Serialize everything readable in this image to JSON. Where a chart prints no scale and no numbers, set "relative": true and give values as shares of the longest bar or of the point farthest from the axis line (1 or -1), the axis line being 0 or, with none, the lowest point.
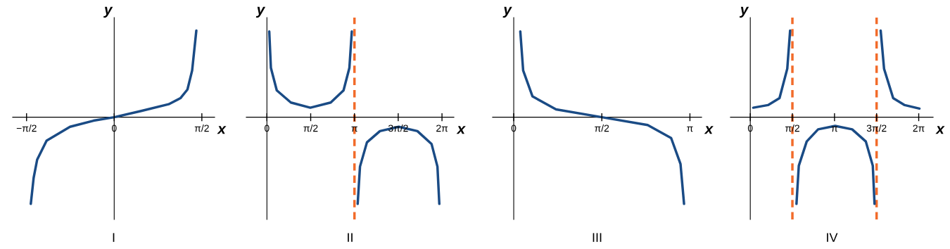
{
  "chart_data": [
    {
      "type": "line",
      "title": "I",
      "xlabel": "x",
      "ylabel": "y",
      "relative": true,
      "xlim": [
        -1.82,
        1.8
      ],
      "xticks": [
        {
          "value": -1.571,
          "label": "−π/2"
        },
        0,
        {
          "value": 1.571,
          "label": "π/2"
        }
      ],
      "series": [
        {
          "color": "#1a4b85",
          "x": [
            -1.495,
            -1.444,
            -1.381,
            -1.212,
            -0.792,
            -0.371,
            0,
            0.471,
            0.976,
            1.187,
            1.313,
            1.397,
            1.472
          ],
          "values": [
            -1.0,
            -0.7,
            -0.49,
            -0.27,
            -0.11,
            -0.04,
            0,
            0.07,
            0.15,
            0.22,
            0.32,
            0.54,
            1.0
          ]
        }
      ]
    },
    {
      "type": "line",
      "title": "II",
      "xlabel": "x",
      "ylabel": "y",
      "relative": true,
      "xlim": [
        -0.74,
        6.71
      ],
      "xticks": [
        0,
        {
          "value": 1.571,
          "label": "π/2"
        },
        {
          "value": 3.142,
          "label": "π"
        },
        {
          "value": 4.712,
          "label": "3π/2"
        },
        {
          "value": 6.283,
          "label": "2π"
        }
      ],
      "ref_lines": [
        {
          "axis": "x",
          "value": 3.142,
          "color": "#f26b2a",
          "line_style": "dashed"
        }
      ],
      "series": [
        {
          "color": "#1a4b85",
          "x": [
            0.084,
            0.143,
            0.354,
            0.859,
            1.557,
            2.29,
            2.75,
            2.96,
            3.047
          ],
          "values": [
            0.99,
            0.57,
            0.31,
            0.17,
            0.11,
            0.17,
            0.31,
            0.57,
            0.99
          ]
        },
        {
          "color": "#1a4b85",
          "x": [
            3.257,
            3.34,
            3.59,
            4.057,
            4.73,
            5.4,
            5.91,
            6.12,
            6.187
          ],
          "values": [
            -1.0,
            -0.57,
            -0.29,
            -0.16,
            -0.11,
            -0.16,
            -0.31,
            -0.57,
            -1.0
          ]
        }
      ]
    },
    {
      "type": "line",
      "title": "III",
      "xlabel": "x",
      "ylabel": "y",
      "relative": true,
      "xlim": [
        -0.377,
        3.35
      ],
      "xticks": [
        0,
        {
          "value": 1.571,
          "label": "π/2"
        },
        {
          "value": 3.142,
          "label": "π"
        }
      ],
      "series": [
        {
          "color": "#1a4b85",
          "x": [
            0.117,
            0.168,
            0.335,
            0.754,
            1.571,
            2.388,
            2.807,
            2.974,
            3.037
          ],
          "values": [
            0.99,
            0.54,
            0.24,
            0.09,
            0,
            -0.09,
            -0.24,
            -0.54,
            -1.0
          ]
        }
      ]
    },
    {
      "type": "line",
      "title": "IV",
      "xlabel": "x",
      "ylabel": "y",
      "relative": true,
      "xlim": [
        -0.74,
        6.82
      ],
      "xticks": [
        0,
        {
          "value": 1.571,
          "label": "π/2"
        },
        {
          "value": 3.142,
          "label": "π"
        },
        {
          "value": 4.712,
          "label": "3π/2"
        },
        {
          "value": 6.283,
          "label": "2π"
        }
      ],
      "ref_lines": [
        {
          "axis": "x",
          "value": 1.571,
          "color": "#f26b2a",
          "line_style": "dashed"
        },
        {
          "axis": "x",
          "value": 4.712,
          "color": "#f26b2a",
          "line_style": "dashed"
        }
      ],
      "series": [
        {
          "color": "#1a4b85",
          "x": [
            0.11,
            0.66,
            1.09,
            1.38,
            1.486
          ],
          "values": [
            0.11,
            0.14,
            0.22,
            0.56,
            1.0
          ]
        },
        {
          "color": "#1a4b85",
          "x": [
            1.723,
            1.81,
            2.105,
            2.53,
            3.166,
            3.8,
            4.31,
            4.57,
            4.635
          ],
          "values": [
            -1.0,
            -0.56,
            -0.28,
            -0.14,
            -0.1,
            -0.14,
            -0.28,
            -0.56,
            -1.0
          ]
        },
        {
          "color": "#1a4b85",
          "x": [
            4.864,
            4.99,
            5.33,
            5.76,
            6.31
          ],
          "values": [
            1.0,
            0.56,
            0.22,
            0.14,
            0.1
          ]
        }
      ]
    }
  ]
}
